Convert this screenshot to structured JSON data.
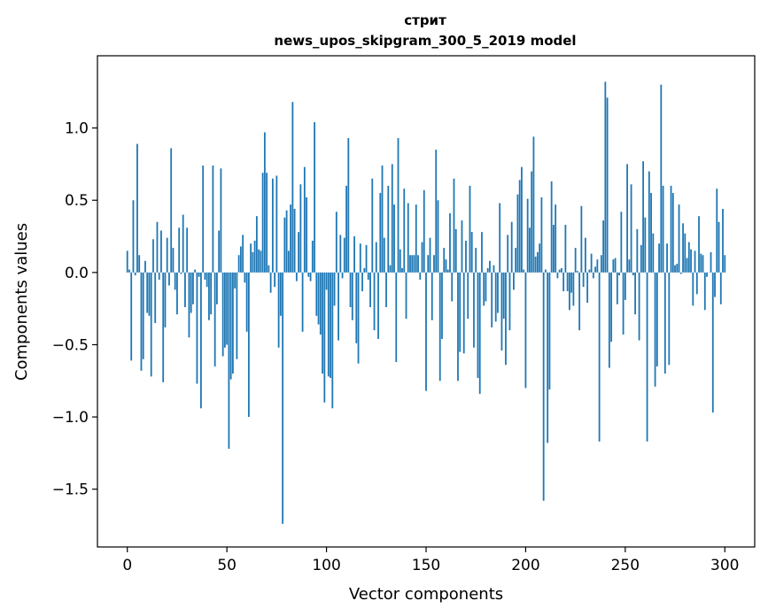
{
  "chart_data": {
    "type": "bar",
    "title": "стрит",
    "subtitle": "news_upos_skipgram_300_5_2019 model",
    "xlabel": "Vector components",
    "ylabel": "Components values",
    "xlim": [
      -15,
      315
    ],
    "ylim": [
      -1.9,
      1.5
    ],
    "xticks": [
      0,
      50,
      100,
      150,
      200,
      250,
      300
    ],
    "xtick_labels": [
      "0",
      "50",
      "100",
      "150",
      "200",
      "250",
      "300"
    ],
    "yticks": [
      -1.5,
      -1.0,
      -0.5,
      0.0,
      0.5,
      1.0
    ],
    "ytick_labels": [
      "−1.5",
      "−1.0",
      "−0.5",
      "0.0",
      "0.5",
      "1.0"
    ],
    "bar_color": "#1f77b4",
    "values": [
      0.15,
      0.02,
      -0.61,
      0.5,
      -0.02,
      0.89,
      0.12,
      -0.68,
      -0.6,
      0.08,
      -0.28,
      -0.3,
      -0.72,
      0.23,
      -0.35,
      0.35,
      -0.05,
      0.29,
      -0.76,
      -0.38,
      0.24,
      -0.09,
      0.86,
      0.17,
      -0.12,
      -0.29,
      0.31,
      -0.01,
      0.4,
      -0.24,
      0.31,
      -0.45,
      -0.28,
      -0.22,
      0.02,
      -0.77,
      -0.03,
      -0.94,
      0.74,
      -0.05,
      -0.1,
      -0.33,
      -0.29,
      0.74,
      -0.65,
      -0.22,
      0.29,
      0.72,
      -0.58,
      -0.52,
      -0.5,
      -1.22,
      -0.74,
      -0.7,
      -0.11,
      -0.6,
      0.12,
      0.18,
      0.26,
      -0.07,
      -0.41,
      -1.0,
      0.2,
      0.14,
      0.22,
      0.39,
      0.16,
      0.15,
      0.69,
      0.97,
      0.69,
      0.05,
      -0.14,
      0.65,
      -0.1,
      0.67,
      -0.52,
      -0.3,
      -1.74,
      0.38,
      0.43,
      0.15,
      0.47,
      1.18,
      0.44,
      -0.06,
      0.28,
      0.61,
      -0.41,
      0.73,
      0.52,
      -0.03,
      -0.06,
      0.22,
      1.04,
      -0.3,
      -0.36,
      -0.43,
      -0.7,
      -0.9,
      -0.12,
      -0.72,
      -0.73,
      -0.94,
      -0.23,
      0.42,
      -0.47,
      0.26,
      -0.04,
      0.24,
      0.6,
      0.93,
      -0.24,
      -0.33,
      0.25,
      -0.49,
      -0.63,
      0.2,
      -0.13,
      0.03,
      0.19,
      -0.05,
      -0.24,
      0.65,
      -0.4,
      0.21,
      -0.46,
      0.55,
      0.74,
      0.24,
      -0.24,
      0.6,
      0.05,
      0.75,
      0.47,
      -0.62,
      0.93,
      0.16,
      0.03,
      0.58,
      -0.32,
      0.48,
      0.12,
      0.12,
      0.12,
      0.47,
      0.12,
      -0.05,
      0.21,
      0.57,
      -0.82,
      0.12,
      0.24,
      -0.33,
      0.12,
      0.85,
      0.5,
      -0.75,
      -0.46,
      0.17,
      0.09,
      0.02,
      0.41,
      -0.2,
      0.65,
      0.3,
      -0.75,
      -0.55,
      0.36,
      -0.56,
      0.22,
      -0.32,
      0.6,
      0.28,
      -0.52,
      0.17,
      -0.73,
      -0.84,
      0.28,
      -0.23,
      -0.2,
      0.03,
      0.08,
      -0.38,
      0.05,
      -0.34,
      -0.28,
      0.48,
      -0.54,
      -0.32,
      -0.64,
      0.26,
      -0.4,
      0.35,
      -0.12,
      0.17,
      0.54,
      0.64,
      0.73,
      0.02,
      -0.8,
      0.51,
      0.31,
      0.7,
      0.94,
      0.11,
      0.14,
      0.2,
      0.52,
      -1.58,
      0.02,
      -1.18,
      -0.81,
      0.63,
      0.33,
      0.47,
      -0.04,
      0.02,
      0.03,
      -0.13,
      0.33,
      -0.13,
      -0.26,
      -0.14,
      -0.23,
      0.17,
      0.01,
      -0.4,
      0.46,
      -0.1,
      0.24,
      -0.21,
      0.02,
      0.13,
      -0.04,
      0.04,
      0.09,
      -1.17,
      0.12,
      0.36,
      1.32,
      1.21,
      -0.66,
      -0.48,
      0.09,
      0.1,
      -0.22,
      -0.02,
      0.42,
      -0.43,
      -0.19,
      0.75,
      0.09,
      0.61,
      -0.02,
      -0.29,
      0.3,
      -0.47,
      0.19,
      0.77,
      0.38,
      -1.17,
      0.7,
      0.55,
      0.27,
      -0.79,
      -0.65,
      0.2,
      1.3,
      0.6,
      -0.7,
      0.2,
      -0.64,
      0.6,
      0.55,
      0.05,
      0.06,
      0.47,
      -0.01,
      0.34,
      0.27,
      0.1,
      0.21,
      0.16,
      -0.23,
      0.15,
      -0.15,
      0.39,
      0.13,
      0.12,
      -0.26,
      -0.03,
      0.0,
      0.14,
      -0.97,
      -0.17,
      0.58,
      0.35,
      -0.22,
      0.44,
      0.12
    ]
  }
}
